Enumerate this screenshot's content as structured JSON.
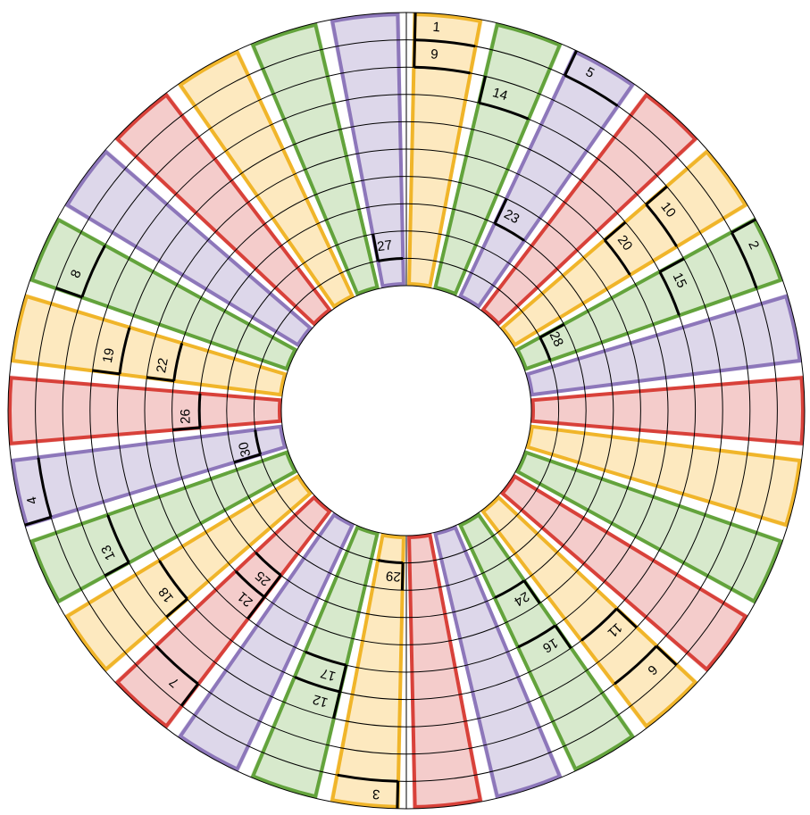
{
  "colors": {
    "red": {
      "fill": "#f4cccb",
      "edge": "#d8413a"
    },
    "purple": {
      "fill": "#ddd7ea",
      "edge": "#8d77ba"
    },
    "green": {
      "fill": "#d7e9cc",
      "edge": "#63a33c"
    },
    "yellow": {
      "fill": "#fde9bf",
      "edge": "#f0b52a"
    },
    "ring_line": "#000000"
  },
  "ring_count": 10,
  "sector_colors": [
    "yellow",
    "green",
    "purple",
    "red",
    "yellow",
    "green",
    "purple",
    "red",
    "yellow",
    "green",
    "red",
    "yellow",
    "green",
    "purple",
    "red",
    "yellow",
    "green",
    "purple",
    "red",
    "yellow",
    "green",
    "purple",
    "red",
    "yellow",
    "green",
    "purple",
    "red",
    "yellow",
    "green",
    "purple"
  ],
  "numbers": [
    {
      "label": "1",
      "sector": 0,
      "ring": 9
    },
    {
      "label": "9",
      "sector": 0,
      "ring": 8
    },
    {
      "label": "14",
      "sector": 1,
      "ring": 7
    },
    {
      "label": "5",
      "sector": 2,
      "ring": 9
    },
    {
      "label": "23",
      "sector": 2,
      "ring": 3
    },
    {
      "label": "10",
      "sector": 4,
      "ring": 7
    },
    {
      "label": "20",
      "sector": 4,
      "ring": 5
    },
    {
      "label": "2",
      "sector": 5,
      "ring": 9
    },
    {
      "label": "15",
      "sector": 5,
      "ring": 6
    },
    {
      "label": "28",
      "sector": 5,
      "ring": 1
    },
    {
      "label": "6",
      "sector": 11,
      "ring": 8
    },
    {
      "label": "11",
      "sector": 11,
      "ring": 6
    },
    {
      "label": "16",
      "sector": 12,
      "ring": 5
    },
    {
      "label": "24",
      "sector": 12,
      "ring": 3
    },
    {
      "label": "3",
      "sector": 15,
      "ring": 9
    },
    {
      "label": "29",
      "sector": 15,
      "ring": 1
    },
    {
      "label": "12",
      "sector": 16,
      "ring": 6
    },
    {
      "label": "17",
      "sector": 16,
      "ring": 5
    },
    {
      "label": "7",
      "sector": 18,
      "ring": 8
    },
    {
      "label": "21",
      "sector": 18,
      "ring": 4
    },
    {
      "label": "25",
      "sector": 18,
      "ring": 3
    },
    {
      "label": "18",
      "sector": 19,
      "ring": 6
    },
    {
      "label": "13",
      "sector": 20,
      "ring": 7
    },
    {
      "label": "4",
      "sector": 21,
      "ring": 9
    },
    {
      "label": "30",
      "sector": 21,
      "ring": 1
    },
    {
      "label": "26",
      "sector": 22,
      "ring": 3
    },
    {
      "label": "19",
      "sector": 23,
      "ring": 6
    },
    {
      "label": "22",
      "sector": 23,
      "ring": 4
    },
    {
      "label": "8",
      "sector": 24,
      "ring": 8
    },
    {
      "label": "27",
      "sector": 29,
      "ring": 1
    }
  ]
}
